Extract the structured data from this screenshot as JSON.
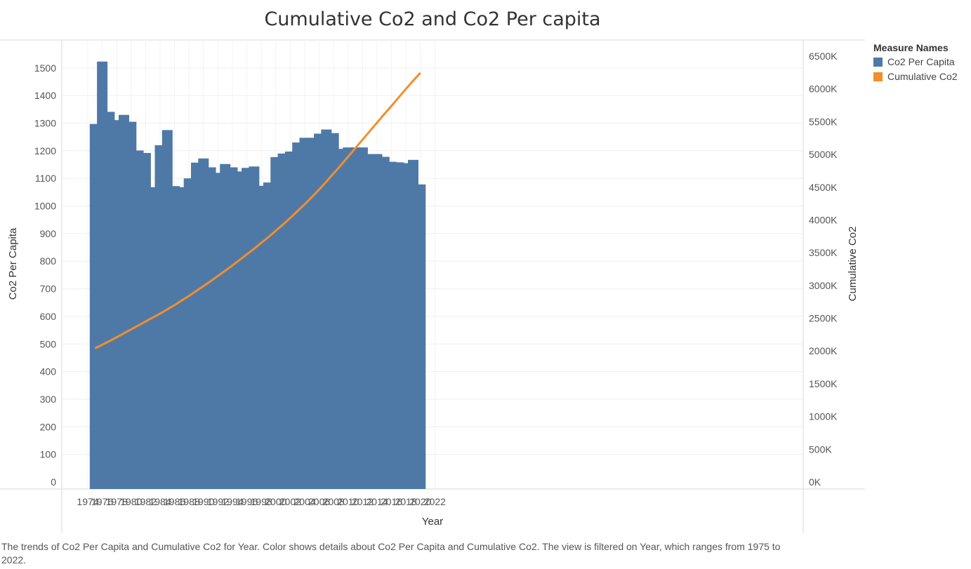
{
  "chart_data": {
    "type": "bar",
    "title": "Cumulative Co2 and Co2 Per capita",
    "xlabel": "Year",
    "ylabel": "Co2 Per Capita",
    "y2label": "Cumulative Co2",
    "x_ticks": [
      "1974",
      "1976",
      "1978",
      "1980",
      "1982",
      "1984",
      "1986",
      "1988",
      "1990",
      "1992",
      "1994",
      "1996",
      "1998",
      "2000",
      "2002",
      "2004",
      "2006",
      "2008",
      "2010",
      "2012",
      "2014",
      "2016",
      "2018",
      "2020",
      "2022"
    ],
    "y_ticks": [
      "0",
      "100",
      "200",
      "300",
      "400",
      "500",
      "600",
      "700",
      "800",
      "900",
      "1000",
      "1100",
      "1200",
      "1300",
      "1400",
      "1500"
    ],
    "y2_ticks": [
      "0K",
      "500K",
      "1000K",
      "1500K",
      "2000K",
      "2500K",
      "3000K",
      "3500K",
      "4000K",
      "4500K",
      "5000K",
      "5500K",
      "6000K",
      "6500K"
    ],
    "ylim": [
      0,
      1525
    ],
    "y2lim": [
      0,
      6500000
    ],
    "xlim": [
      1973,
      2023
    ],
    "grid": true,
    "legend_position": "right",
    "legend_title": "Measure Names",
    "series": [
      {
        "name": "Co2 Per Capita",
        "type": "bar",
        "axis": "left",
        "color": "#4e79a7",
        "x": [
          1975,
          1976,
          1977,
          1978,
          1979,
          1980,
          1981,
          1982,
          1983,
          1984,
          1985,
          1986,
          1987,
          1988,
          1989,
          1990,
          1991,
          1992,
          1993,
          1994,
          1995,
          1996,
          1997,
          1998,
          1999,
          2000,
          2001,
          2002,
          2003,
          2004,
          2005,
          2006,
          2007,
          2008,
          2009,
          2010,
          2011,
          2012,
          2013,
          2014,
          2015,
          2016,
          2017,
          2018,
          2019,
          2020
        ],
        "values": [
          1297,
          1523,
          1341,
          1311,
          1330,
          1305,
          1201,
          1192,
          1068,
          1220,
          1275,
          1072,
          1068,
          1100,
          1157,
          1172,
          1140,
          1120,
          1152,
          1140,
          1125,
          1138,
          1143,
          1073,
          1085,
          1177,
          1190,
          1197,
          1230,
          1247,
          1247,
          1262,
          1277,
          1264,
          1207,
          1212,
          1212,
          1212,
          1188,
          1188,
          1178,
          1160,
          1158,
          1155,
          1167,
          1078
        ]
      },
      {
        "name": "Cumulative Co2",
        "type": "line",
        "axis": "right",
        "color": "#f28e2b",
        "x": [
          1975,
          1976,
          1977,
          1978,
          1979,
          1980,
          1981,
          1982,
          1983,
          1984,
          1985,
          1986,
          1987,
          1988,
          1989,
          1990,
          1991,
          1992,
          1993,
          1994,
          1995,
          1996,
          1997,
          1998,
          1999,
          2000,
          2001,
          2002,
          2003,
          2004,
          2005,
          2006,
          2007,
          2008,
          2009,
          2010,
          2011,
          2012,
          2013,
          2014,
          2015,
          2016,
          2017,
          2018,
          2019,
          2020
        ],
        "values": [
          2040000,
          2095000,
          2150000,
          2210000,
          2270000,
          2330000,
          2390000,
          2450000,
          2510000,
          2570000,
          2635000,
          2700000,
          2770000,
          2840000,
          2915000,
          2990000,
          3065000,
          3145000,
          3225000,
          3305000,
          3390000,
          3475000,
          3560000,
          3650000,
          3740000,
          3835000,
          3930000,
          4030000,
          4135000,
          4240000,
          4350000,
          4465000,
          4585000,
          4710000,
          4835000,
          4965000,
          5095000,
          5225000,
          5355000,
          5485000,
          5615000,
          5740000,
          5870000,
          6000000,
          6125000,
          6245000
        ]
      }
    ]
  },
  "caption": "The trends of Co2 Per Capita and Cumulative Co2 for Year.  Color shows details about Co2 Per Capita and Cumulative Co2. The view is filtered on Year, which ranges from 1975 to 2022."
}
